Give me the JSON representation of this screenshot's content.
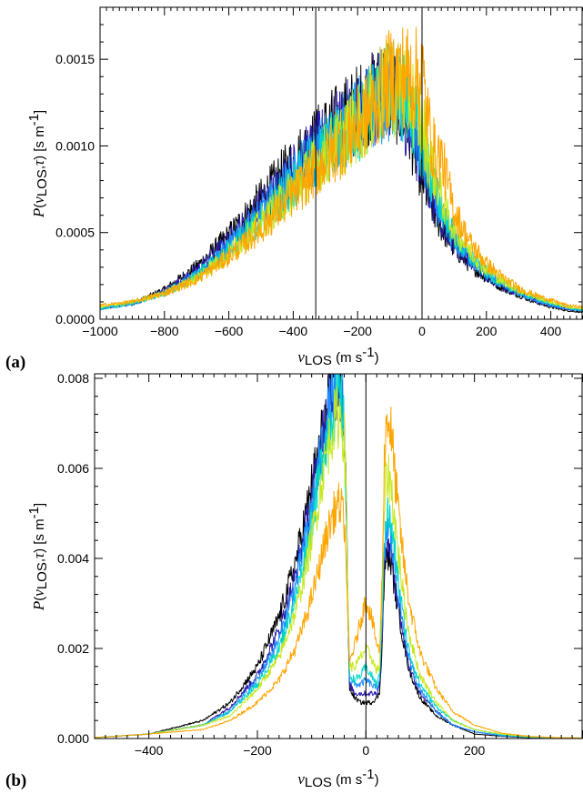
{
  "chart_data": [
    {
      "panel": "(a)",
      "type": "line",
      "xlabel": "vLOS (m s-1)",
      "ylabel": "P(vLOS,τ) [s m-1]",
      "xlim": [
        -1000,
        500
      ],
      "ylim": [
        0,
        0.0018
      ],
      "xticks": [
        -1000,
        -800,
        -600,
        -400,
        -200,
        0,
        200,
        400
      ],
      "xtick_labels": [
        "−1000",
        "−800",
        "−600",
        "−400",
        "−200",
        "0",
        "200",
        "400"
      ],
      "yticks": [
        0,
        0.0005,
        0.001,
        0.0015
      ],
      "ytick_labels": [
        "0.0000",
        "0.0005",
        "0.0010",
        "0.0015"
      ],
      "vlines": [
        -330,
        0
      ],
      "noise": 0.11,
      "series": [
        {
          "color": "#000000",
          "x": [
            -1000,
            -900,
            -800,
            -700,
            -600,
            -500,
            -400,
            -300,
            -200,
            -150,
            -120,
            -100,
            -80,
            -60,
            -40,
            -20,
            0,
            20,
            40,
            60,
            80,
            100,
            150,
            200,
            250,
            300,
            350,
            400,
            450,
            500
          ],
          "y": [
            6e-05,
            9e-05,
            0.00017,
            0.0003,
            0.00048,
            0.00069,
            0.0009,
            0.00108,
            0.00122,
            0.00128,
            0.00133,
            0.00132,
            0.00128,
            0.00121,
            0.00111,
            0.00097,
            0.00082,
            0.0007,
            0.00061,
            0.00053,
            0.00047,
            0.00041,
            0.00031,
            0.00024,
            0.00018,
            0.00014,
            0.0001,
            7e-05,
            5e-05,
            4e-05
          ]
        },
        {
          "color": "#2a1aa8",
          "x": [
            -1000,
            -900,
            -800,
            -700,
            -600,
            -500,
            -400,
            -300,
            -200,
            -150,
            -120,
            -100,
            -80,
            -60,
            -40,
            -20,
            0,
            20,
            40,
            60,
            80,
            100,
            150,
            200,
            250,
            300,
            350,
            400,
            450,
            500
          ],
          "y": [
            6e-05,
            9e-05,
            0.00016,
            0.00028,
            0.00045,
            0.00065,
            0.00086,
            0.00104,
            0.00119,
            0.00126,
            0.00131,
            0.00131,
            0.00128,
            0.00123,
            0.00115,
            0.00102,
            0.00088,
            0.00076,
            0.00066,
            0.00057,
            0.0005,
            0.00044,
            0.00033,
            0.00025,
            0.00019,
            0.00015,
            0.00011,
            8e-05,
            6e-05,
            5e-05
          ]
        },
        {
          "color": "#1e90ff",
          "x": [
            -1000,
            -900,
            -800,
            -700,
            -600,
            -500,
            -400,
            -300,
            -200,
            -150,
            -120,
            -100,
            -80,
            -60,
            -40,
            -20,
            0,
            20,
            40,
            60,
            80,
            100,
            150,
            200,
            250,
            300,
            350,
            400,
            450,
            500
          ],
          "y": [
            6e-05,
            9e-05,
            0.00015,
            0.00026,
            0.00042,
            0.00061,
            0.00082,
            0.001,
            0.00116,
            0.00124,
            0.0013,
            0.00131,
            0.00129,
            0.00125,
            0.00119,
            0.00108,
            0.00094,
            0.00081,
            0.0007,
            0.0006,
            0.00052,
            0.00046,
            0.00035,
            0.00026,
            0.0002,
            0.00015,
            0.00011,
            8e-05,
            6e-05,
            5e-05
          ]
        },
        {
          "color": "#00d6c8",
          "x": [
            -1000,
            -900,
            -800,
            -700,
            -600,
            -500,
            -400,
            -300,
            -200,
            -150,
            -120,
            -100,
            -80,
            -60,
            -40,
            -20,
            0,
            20,
            40,
            60,
            80,
            100,
            150,
            200,
            250,
            300,
            350,
            400,
            450,
            500
          ],
          "y": [
            6e-05,
            9e-05,
            0.00015,
            0.00025,
            0.0004,
            0.00058,
            0.00078,
            0.00097,
            0.00114,
            0.00123,
            0.0013,
            0.00132,
            0.00131,
            0.00129,
            0.00124,
            0.00114,
            0.001,
            0.00087,
            0.00075,
            0.00064,
            0.00055,
            0.00048,
            0.00036,
            0.00027,
            0.0002,
            0.00016,
            0.00012,
            9e-05,
            7e-05,
            5e-05
          ]
        },
        {
          "color": "#c8e81e",
          "x": [
            -1000,
            -900,
            -800,
            -700,
            -600,
            -500,
            -400,
            -300,
            -200,
            -150,
            -120,
            -100,
            -80,
            -60,
            -40,
            -20,
            0,
            20,
            40,
            60,
            80,
            100,
            150,
            200,
            250,
            300,
            350,
            400,
            450,
            500
          ],
          "y": [
            7e-05,
            0.0001,
            0.00015,
            0.00024,
            0.00038,
            0.00055,
            0.00075,
            0.00095,
            0.00113,
            0.00123,
            0.00131,
            0.00134,
            0.00134,
            0.00133,
            0.0013,
            0.00123,
            0.00112,
            0.00096,
            0.00083,
            0.00071,
            0.0006,
            0.00052,
            0.00039,
            0.00029,
            0.00022,
            0.00017,
            0.00013,
            0.0001,
            7e-05,
            6e-05
          ]
        },
        {
          "color": "#ffa500",
          "x": [
            -1000,
            -900,
            -800,
            -700,
            -600,
            -500,
            -400,
            -300,
            -200,
            -150,
            -120,
            -100,
            -80,
            -60,
            -40,
            -20,
            0,
            20,
            40,
            60,
            80,
            100,
            150,
            200,
            250,
            300,
            350,
            400,
            450,
            500
          ],
          "y": [
            8e-05,
            0.0001,
            0.00015,
            0.00023,
            0.00036,
            0.00052,
            0.00072,
            0.00092,
            0.00111,
            0.00123,
            0.00132,
            0.00138,
            0.0014,
            0.00141,
            0.0014,
            0.00138,
            0.00142,
            0.00112,
            0.00095,
            0.00093,
            0.00078,
            0.00062,
            0.00044,
            0.00032,
            0.00024,
            0.00018,
            0.00014,
            0.00011,
            8e-05,
            7e-05
          ]
        }
      ]
    },
    {
      "panel": "(b)",
      "type": "line",
      "xlabel": "vLOS (m s-1)",
      "ylabel": "P(vLOS,τ) [s m-1]",
      "xlim": [
        -500,
        400
      ],
      "ylim": [
        0,
        0.0081
      ],
      "xticks": [
        -400,
        -200,
        0,
        200
      ],
      "xtick_labels": [
        "−400",
        "−200",
        "0",
        "200"
      ],
      "yticks": [
        0,
        0.002,
        0.004,
        0.006,
        0.008
      ],
      "ytick_labels": [
        "0.000",
        "0.002",
        "0.004",
        "0.006",
        "0.008"
      ],
      "vlines": [
        0
      ],
      "noise": 0.05,
      "series": [
        {
          "color": "#000000",
          "x": [
            -500,
            -400,
            -300,
            -250,
            -200,
            -160,
            -130,
            -110,
            -90,
            -75,
            -60,
            -50,
            -45,
            -40,
            -36,
            -33,
            -30,
            -20,
            -10,
            0,
            10,
            20,
            25,
            30,
            33,
            36,
            40,
            45,
            50,
            60,
            70,
            80,
            100,
            130,
            160,
            200,
            250,
            300,
            350,
            400
          ],
          "y": [
            2e-05,
            0.0001,
            0.0004,
            0.0008,
            0.0016,
            0.0027,
            0.0039,
            0.005,
            0.0062,
            0.0071,
            0.0077,
            0.0078,
            0.0076,
            0.0068,
            0.005,
            0.0025,
            0.0011,
            0.0009,
            0.0008,
            0.0008,
            0.0008,
            0.0009,
            0.001,
            0.0021,
            0.0033,
            0.0039,
            0.0041,
            0.004,
            0.0036,
            0.0028,
            0.0021,
            0.0015,
            0.0009,
            0.0005,
            0.0003,
            0.0001,
            5e-05,
            2e-05,
            1e-05,
            1e-05
          ]
        },
        {
          "color": "#2a1aa8",
          "x": [
            -500,
            -400,
            -300,
            -250,
            -200,
            -160,
            -130,
            -110,
            -90,
            -75,
            -60,
            -50,
            -45,
            -40,
            -36,
            -33,
            -30,
            -20,
            -10,
            0,
            10,
            20,
            25,
            30,
            33,
            36,
            40,
            45,
            50,
            60,
            70,
            80,
            100,
            130,
            160,
            200,
            250,
            300,
            350,
            400
          ],
          "y": [
            2e-05,
            0.0001,
            0.0003,
            0.0007,
            0.0014,
            0.0024,
            0.0036,
            0.0047,
            0.006,
            0.007,
            0.0077,
            0.0079,
            0.0077,
            0.007,
            0.0052,
            0.0027,
            0.0012,
            0.001,
            0.001,
            0.001,
            0.001,
            0.001,
            0.0012,
            0.0023,
            0.0036,
            0.0042,
            0.0044,
            0.0042,
            0.0038,
            0.003,
            0.0022,
            0.0016,
            0.001,
            0.0006,
            0.0003,
            0.00015,
            6e-05,
            3e-05,
            1e-05,
            1e-05
          ]
        },
        {
          "color": "#1e90ff",
          "x": [
            -500,
            -400,
            -300,
            -250,
            -200,
            -160,
            -130,
            -110,
            -90,
            -75,
            -60,
            -50,
            -45,
            -40,
            -36,
            -33,
            -30,
            -20,
            -10,
            0,
            10,
            20,
            25,
            30,
            33,
            36,
            40,
            45,
            50,
            60,
            70,
            80,
            100,
            130,
            160,
            200,
            250,
            300,
            350,
            400
          ],
          "y": [
            2e-05,
            0.0001,
            0.0003,
            0.0006,
            0.0013,
            0.0022,
            0.0034,
            0.0045,
            0.0058,
            0.0069,
            0.0076,
            0.0078,
            0.0077,
            0.007,
            0.0053,
            0.0029,
            0.0013,
            0.0012,
            0.0012,
            0.0013,
            0.0012,
            0.0011,
            0.0013,
            0.0025,
            0.0038,
            0.0045,
            0.0047,
            0.0045,
            0.0041,
            0.0032,
            0.0024,
            0.0017,
            0.0011,
            0.0006,
            0.0003,
            0.00015,
            6e-05,
            3e-05,
            1e-05,
            1e-05
          ]
        },
        {
          "color": "#00d6c8",
          "x": [
            -500,
            -400,
            -300,
            -250,
            -200,
            -160,
            -130,
            -110,
            -90,
            -75,
            -60,
            -50,
            -45,
            -40,
            -36,
            -33,
            -30,
            -20,
            -10,
            0,
            10,
            20,
            25,
            30,
            33,
            36,
            40,
            45,
            50,
            60,
            70,
            80,
            100,
            130,
            160,
            200,
            250,
            300,
            350,
            400
          ],
          "y": [
            2e-05,
            0.0001,
            0.0003,
            0.0006,
            0.0012,
            0.002,
            0.0031,
            0.0042,
            0.0055,
            0.0066,
            0.0073,
            0.0075,
            0.0074,
            0.0068,
            0.0052,
            0.003,
            0.0014,
            0.0013,
            0.0014,
            0.0016,
            0.0014,
            0.0012,
            0.0014,
            0.0027,
            0.0041,
            0.0048,
            0.005,
            0.0048,
            0.0044,
            0.0035,
            0.0026,
            0.0019,
            0.0012,
            0.0007,
            0.0004,
            0.0002,
            8e-05,
            3e-05,
            2e-05,
            1e-05
          ]
        },
        {
          "color": "#c8e81e",
          "x": [
            -500,
            -400,
            -300,
            -250,
            -200,
            -160,
            -130,
            -110,
            -90,
            -75,
            -60,
            -50,
            -45,
            -40,
            -36,
            -33,
            -30,
            -20,
            -10,
            0,
            10,
            20,
            25,
            30,
            33,
            36,
            40,
            45,
            50,
            60,
            70,
            80,
            100,
            130,
            160,
            200,
            250,
            300,
            350,
            400
          ],
          "y": [
            2e-05,
            0.0001,
            0.0003,
            0.0005,
            0.0011,
            0.0018,
            0.0028,
            0.0038,
            0.0051,
            0.0062,
            0.007,
            0.0072,
            0.0071,
            0.0066,
            0.0051,
            0.003,
            0.0016,
            0.0016,
            0.0018,
            0.002,
            0.0018,
            0.0015,
            0.0016,
            0.0031,
            0.0047,
            0.0056,
            0.0059,
            0.0057,
            0.0052,
            0.0041,
            0.0031,
            0.0023,
            0.0014,
            0.0008,
            0.0004,
            0.0002,
            0.0001,
            4e-05,
            2e-05,
            1e-05
          ]
        },
        {
          "color": "#ffa500",
          "x": [
            -500,
            -400,
            -300,
            -250,
            -200,
            -160,
            -130,
            -110,
            -90,
            -75,
            -60,
            -50,
            -45,
            -40,
            -36,
            -33,
            -30,
            -20,
            -10,
            0,
            10,
            20,
            25,
            30,
            33,
            36,
            40,
            45,
            50,
            60,
            70,
            80,
            100,
            130,
            160,
            200,
            250,
            300,
            350,
            400
          ],
          "y": [
            2e-05,
            0.0001,
            0.0002,
            0.0004,
            0.0008,
            0.0013,
            0.002,
            0.0027,
            0.0036,
            0.0044,
            0.005,
            0.0052,
            0.0051,
            0.0048,
            0.0038,
            0.0024,
            0.0017,
            0.0021,
            0.0026,
            0.0031,
            0.0027,
            0.0021,
            0.0019,
            0.0036,
            0.0058,
            0.0068,
            0.0072,
            0.0069,
            0.0063,
            0.005,
            0.0039,
            0.003,
            0.0019,
            0.0011,
            0.0006,
            0.0003,
            0.00012,
            5e-05,
            2e-05,
            1e-05
          ]
        }
      ]
    }
  ]
}
